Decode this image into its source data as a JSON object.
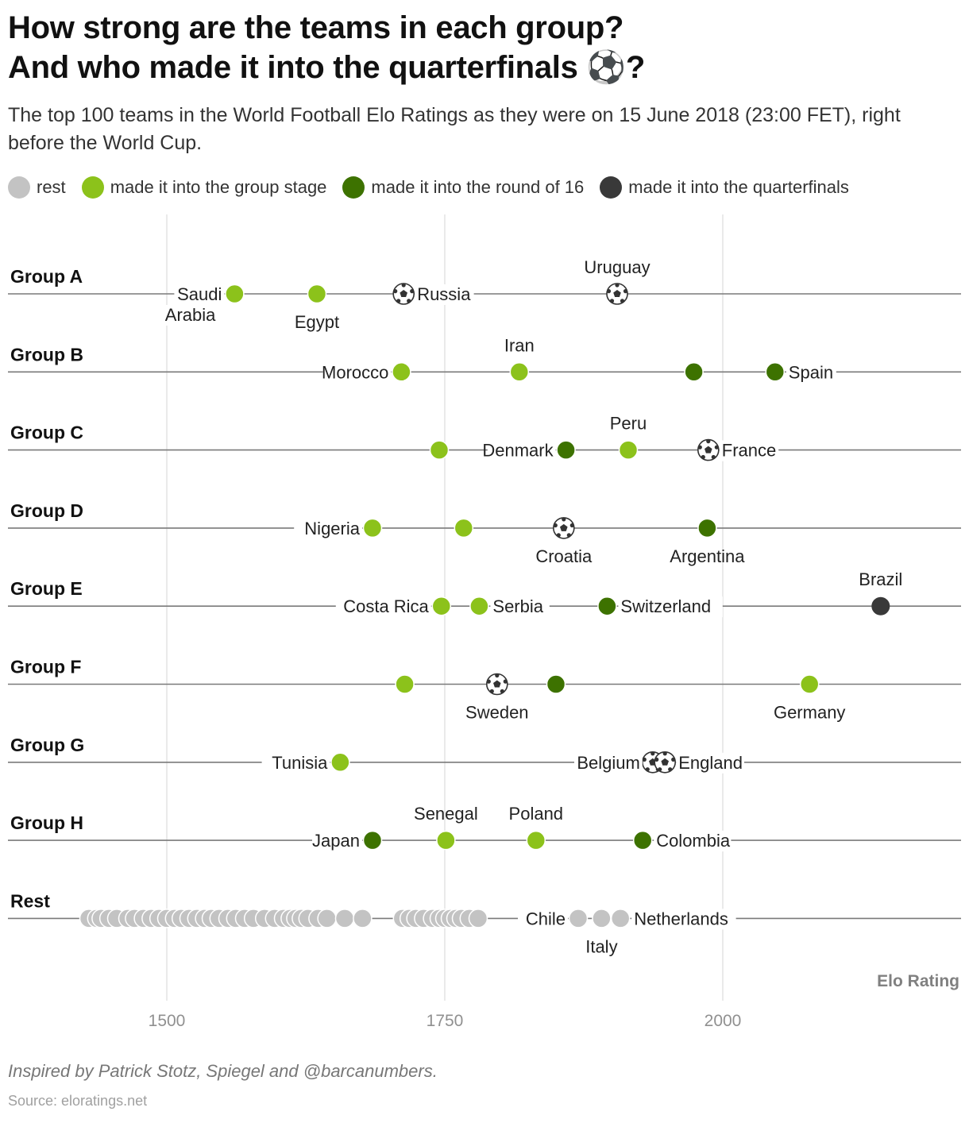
{
  "header": {
    "title_line1": "How strong are the teams in each group?",
    "title_line2": "And who made it into the quarterfinals ⚽?",
    "subtitle": "The top 100 teams in the World Football Elo Ratings as they were on 15 June 2018 (23:00 FET), right before the World Cup."
  },
  "legend": [
    {
      "label": "rest",
      "color": "#c3c3c3"
    },
    {
      "label": "made it into the group stage",
      "color": "#8cc21b"
    },
    {
      "label": "made it into the round of 16",
      "color": "#3d7200"
    },
    {
      "label": "made it into the quarterfinals",
      "color": "#393939"
    }
  ],
  "chart_data": {
    "type": "scatter",
    "xlabel": "Elo Rating",
    "xlim": [
      1357,
      2214
    ],
    "xticks": [
      1500,
      1750,
      2000
    ],
    "grid": true,
    "rows": [
      {
        "group": "Group A",
        "teams": [
          {
            "name": "Saudi Arabia",
            "elo": 1561,
            "status": "group",
            "label_lines": [
              "Saudi",
              "Arabia"
            ]
          },
          {
            "name": "Egypt",
            "elo": 1635,
            "status": "group",
            "label_lines": [
              "Egypt"
            ]
          },
          {
            "name": "Russia",
            "elo": 1713,
            "status": "quarterfinal",
            "label_lines": [
              "Russia"
            ]
          },
          {
            "name": "Uruguay",
            "elo": 1905,
            "status": "quarterfinal",
            "label_lines": [
              "Uruguay"
            ]
          }
        ]
      },
      {
        "group": "Group B",
        "teams": [
          {
            "name": "Morocco",
            "elo": 1711,
            "status": "group",
            "label_lines": [
              "Morocco"
            ]
          },
          {
            "name": "Iran",
            "elo": 1817,
            "status": "group",
            "label_lines": [
              "Iran"
            ]
          },
          {
            "name": "",
            "elo": 1974,
            "status": "round16",
            "label_lines": []
          },
          {
            "name": "Spain",
            "elo": 2047,
            "status": "round16",
            "label_lines": [
              "Spain"
            ]
          }
        ]
      },
      {
        "group": "Group C",
        "teams": [
          {
            "name": "",
            "elo": 1745,
            "status": "group",
            "label_lines": []
          },
          {
            "name": "Denmark",
            "elo": 1859,
            "status": "round16",
            "label_lines": [
              "Denmark"
            ]
          },
          {
            "name": "Peru",
            "elo": 1915,
            "status": "group",
            "label_lines": [
              "Peru"
            ]
          },
          {
            "name": "France",
            "elo": 1987,
            "status": "quarterfinal",
            "label_lines": [
              "France"
            ]
          }
        ]
      },
      {
        "group": "Group D",
        "teams": [
          {
            "name": "Nigeria",
            "elo": 1685,
            "status": "group",
            "label_lines": [
              "Nigeria"
            ]
          },
          {
            "name": "",
            "elo": 1767,
            "status": "group",
            "label_lines": []
          },
          {
            "name": "Croatia",
            "elo": 1857,
            "status": "quarterfinal",
            "label_lines": [
              "Croatia"
            ]
          },
          {
            "name": "Argentina",
            "elo": 1986,
            "status": "round16",
            "label_lines": [
              "Argentina"
            ]
          }
        ]
      },
      {
        "group": "Group E",
        "teams": [
          {
            "name": "Costa Rica",
            "elo": 1747,
            "status": "group",
            "label_lines": [
              "Costa Rica"
            ]
          },
          {
            "name": "Serbia",
            "elo": 1781,
            "status": "group",
            "label_lines": [
              "Serbia"
            ]
          },
          {
            "name": "Switzerland",
            "elo": 1896,
            "status": "round16",
            "label_lines": [
              "Switzerland"
            ]
          },
          {
            "name": "Brazil",
            "elo": 2142,
            "status": "quarterfinal",
            "label_lines": [
              "Brazil"
            ]
          }
        ]
      },
      {
        "group": "Group F",
        "teams": [
          {
            "name": "",
            "elo": 1714,
            "status": "group",
            "label_lines": []
          },
          {
            "name": "Sweden",
            "elo": 1797,
            "status": "quarterfinal",
            "label_lines": [
              "Sweden"
            ]
          },
          {
            "name": "",
            "elo": 1850,
            "status": "round16",
            "label_lines": []
          },
          {
            "name": "Germany",
            "elo": 2078,
            "status": "group",
            "label_lines": [
              "Germany"
            ]
          }
        ]
      },
      {
        "group": "Group G",
        "teams": [
          {
            "name": "Tunisia",
            "elo": 1656,
            "status": "group",
            "label_lines": [
              "Tunisia"
            ]
          },
          {
            "name": "Belgium",
            "elo": 1937,
            "status": "quarterfinal",
            "label_lines": [
              "Belgium"
            ]
          },
          {
            "name": "England",
            "elo": 1948,
            "status": "quarterfinal",
            "label_lines": [
              "England"
            ]
          }
        ]
      },
      {
        "group": "Group H",
        "teams": [
          {
            "name": "Japan",
            "elo": 1685,
            "status": "round16",
            "label_lines": [
              "Japan"
            ]
          },
          {
            "name": "Senegal",
            "elo": 1751,
            "status": "group",
            "label_lines": [
              "Senegal"
            ]
          },
          {
            "name": "Poland",
            "elo": 1832,
            "status": "group",
            "label_lines": [
              "Poland"
            ]
          },
          {
            "name": "Colombia",
            "elo": 1928,
            "status": "round16",
            "label_lines": [
              "Colombia"
            ]
          }
        ]
      },
      {
        "group": "Rest",
        "teams": [
          {
            "name": "Chile",
            "elo": 1870,
            "status": "rest",
            "label_lines": [
              "Chile"
            ]
          },
          {
            "name": "Italy",
            "elo": 1891,
            "status": "rest",
            "label_lines": [
              "Italy"
            ]
          },
          {
            "name": "Netherlands",
            "elo": 1908,
            "status": "rest",
            "label_lines": [
              "Netherlands"
            ]
          }
        ],
        "other_elos": [
          1430,
          1437,
          1441,
          1448,
          1455,
          1465,
          1471,
          1479,
          1486,
          1493,
          1500,
          1507,
          1513,
          1520,
          1527,
          1534,
          1540,
          1547,
          1555,
          1562,
          1570,
          1578,
          1588,
          1597,
          1605,
          1611,
          1616,
          1621,
          1627,
          1636,
          1644,
          1660,
          1676,
          1712,
          1718,
          1724,
          1731,
          1739,
          1745,
          1750,
          1755,
          1760,
          1765,
          1772,
          1780
        ]
      }
    ],
    "label_positions": {
      "Saudi Arabia": "left",
      "Egypt": "below",
      "Russia": "right",
      "Uruguay": "above",
      "Morocco": "left",
      "Iran": "above",
      "Spain": "right",
      "Denmark": "left",
      "Peru": "above",
      "France": "right",
      "Nigeria": "left",
      "Croatia": "below",
      "Argentina": "below",
      "Costa Rica": "left",
      "Serbia": "right",
      "Switzerland": "right",
      "Brazil": "above",
      "Sweden": "below",
      "Germany": "below",
      "Tunisia": "left",
      "Belgium": "left",
      "England": "right",
      "Japan": "left",
      "Senegal": "above",
      "Poland": "above",
      "Colombia": "right",
      "Chile": "left",
      "Italy": "below",
      "Netherlands": "right"
    },
    "status_colors": {
      "rest": "#c3c3c3",
      "group": "#8cc21b",
      "round16": "#3d7200",
      "quarterfinal": "#393939"
    }
  },
  "footer": {
    "note": "Inspired by Patrick Stotz, Spiegel and @barcanumbers.",
    "source": "Source: eloratings.net"
  }
}
